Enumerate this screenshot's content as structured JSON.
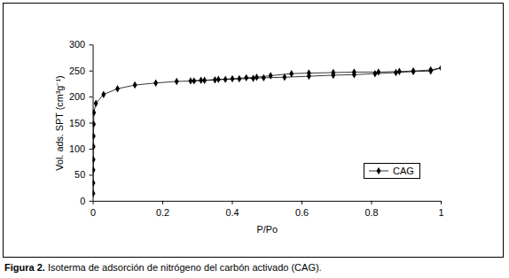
{
  "chart_data": {
    "type": "line",
    "caption": "Figura 2. Isoterma de adsorción de nitrógeno del carbón activado (CAG).",
    "x_label": "P/Po",
    "y_label": "Vol. ads. SPT (cm³g⁻¹)",
    "xlim": [
      0,
      1
    ],
    "xticks": [
      0,
      0.2,
      0.4,
      0.6,
      0.8,
      1
    ],
    "ylim": [
      0,
      300
    ],
    "yticks": [
      0,
      50,
      100,
      150,
      200,
      250,
      300
    ],
    "grid": false,
    "legend": "lower right",
    "series": [
      {
        "name": "CAG",
        "color": "#000000",
        "marker": "diamond",
        "line_style": "solid",
        "x": [
          0.0001,
          0.0002,
          0.0003,
          0.0005,
          0.0007,
          0.001,
          0.0015,
          0.002,
          0.008,
          0.03,
          0.07,
          0.12,
          0.18,
          0.24,
          0.29,
          0.31,
          0.35,
          0.38,
          0.42,
          0.46,
          0.49,
          0.55,
          0.62,
          0.69,
          0.75,
          0.81,
          0.87,
          0.92,
          0.97,
          1.0,
          0.97,
          0.92,
          0.88,
          0.82,
          0.75,
          0.69,
          0.62,
          0.57,
          0.51,
          0.47,
          0.44,
          0.4,
          0.36,
          0.32,
          0.28
        ],
        "values": [
          15,
          35,
          60,
          80,
          105,
          125,
          148,
          170,
          188,
          205,
          216,
          223,
          227,
          230,
          231,
          232,
          233,
          234,
          235,
          236,
          237,
          238,
          240,
          242,
          243,
          245,
          247,
          249,
          250,
          256,
          252,
          250,
          249,
          248,
          248,
          247,
          246,
          245,
          241,
          238,
          237,
          235,
          234,
          232,
          231
        ]
      }
    ]
  }
}
